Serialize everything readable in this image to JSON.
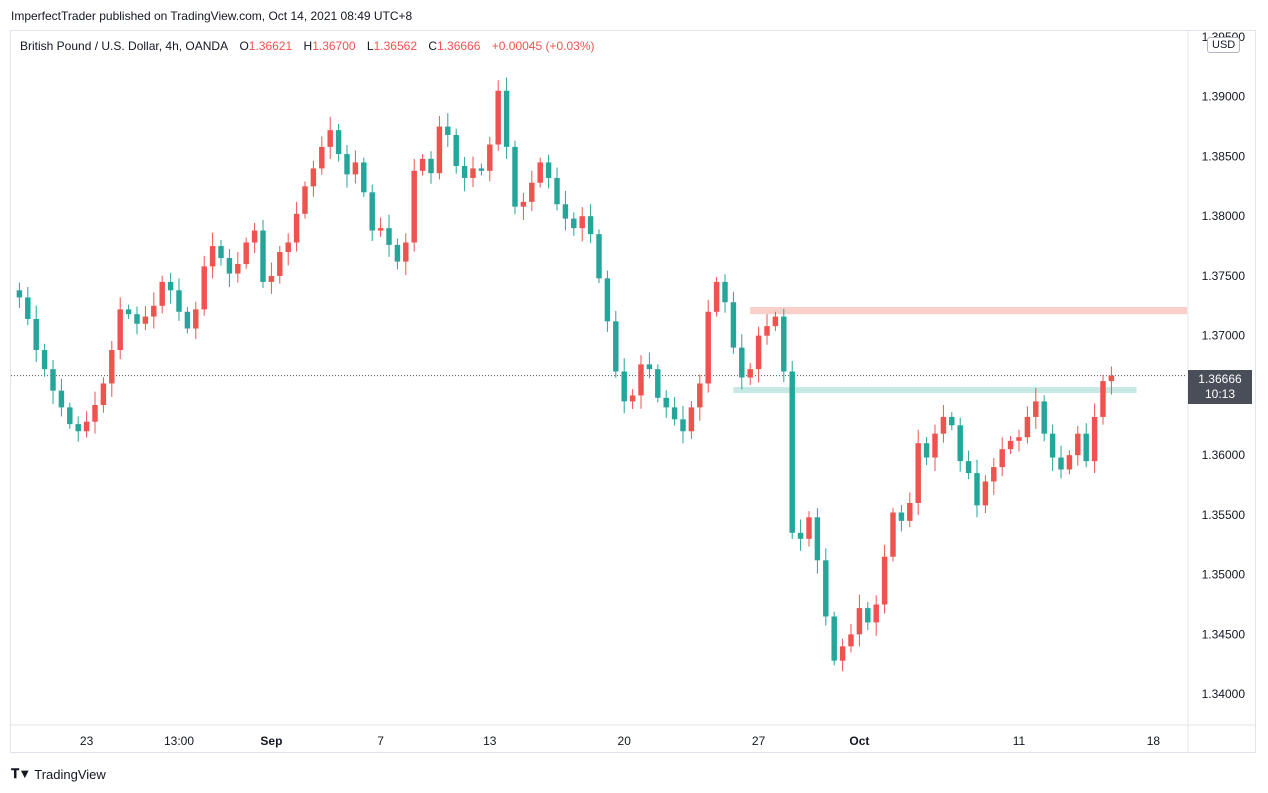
{
  "header": {
    "published": "ImperfectTrader published on TradingView.com, Oct 14, 2021 08:49 UTC+8"
  },
  "legend": {
    "symbol": "British Pound / U.S. Dollar, 4h, OANDA",
    "open_label": "O",
    "open": "1.36621",
    "high_label": "H",
    "high": "1.36700",
    "low_label": "L",
    "low": "1.36562",
    "close_label": "C",
    "close": "1.36666",
    "change": "+0.00045 (+0.03%)"
  },
  "currency_badge": "USD",
  "last_price": {
    "price": "1.36666",
    "countdown": "10:13"
  },
  "footer": {
    "brand": "TradingView",
    "brand_icon": "tradingview-logo-icon"
  },
  "colors": {
    "up": "#ef5350",
    "down": "#26a69a",
    "resistance_zone": "#f8cfc9",
    "support_zone": "#c8e8e5"
  },
  "chart_data": {
    "type": "candlestick",
    "instrument": "British Pound / U.S. Dollar",
    "timeframe": "4h",
    "ylim": [
      1.3375,
      1.3955
    ],
    "xlim": [
      0,
      140
    ],
    "y_ticks": [
      "1.39500",
      "1.39000",
      "1.38500",
      "1.38000",
      "1.37500",
      "1.37000",
      "1.36500",
      "1.36000",
      "1.35500",
      "1.35000",
      "1.34500",
      "1.34000"
    ],
    "x_ticks": [
      {
        "label": "23",
        "x": 9,
        "bold": false
      },
      {
        "label": "13:00",
        "x": 20,
        "bold": false
      },
      {
        "label": "Sep",
        "x": 31,
        "bold": true
      },
      {
        "label": "7",
        "x": 44,
        "bold": false
      },
      {
        "label": "13",
        "x": 57,
        "bold": false
      },
      {
        "label": "20",
        "x": 73,
        "bold": false
      },
      {
        "label": "27",
        "x": 89,
        "bold": false
      },
      {
        "label": "Oct",
        "x": 101,
        "bold": true
      },
      {
        "label": "11",
        "x": 120,
        "bold": false
      },
      {
        "label": "18",
        "x": 136,
        "bold": false
      }
    ],
    "close_path": [
      [
        0,
        1.3738
      ],
      [
        1,
        1.3732
      ],
      [
        2,
        1.3714
      ],
      [
        3,
        1.3688
      ],
      [
        4,
        1.3672
      ],
      [
        5,
        1.3654
      ],
      [
        6,
        1.364
      ],
      [
        7,
        1.3626
      ],
      [
        8,
        1.362
      ],
      [
        9,
        1.3628
      ],
      [
        10,
        1.3642
      ],
      [
        11,
        1.366
      ],
      [
        12,
        1.3688
      ],
      [
        13,
        1.3722
      ],
      [
        14,
        1.3718
      ],
      [
        15,
        1.371
      ],
      [
        16,
        1.3716
      ],
      [
        17,
        1.3725
      ],
      [
        18,
        1.3745
      ],
      [
        19,
        1.3738
      ],
      [
        20,
        1.372
      ],
      [
        21,
        1.3706
      ],
      [
        22,
        1.3722
      ],
      [
        23,
        1.3758
      ],
      [
        24,
        1.3775
      ],
      [
        25,
        1.3765
      ],
      [
        26,
        1.3752
      ],
      [
        27,
        1.376
      ],
      [
        28,
        1.3778
      ],
      [
        29,
        1.3788
      ],
      [
        30,
        1.3745
      ],
      [
        31,
        1.375
      ],
      [
        32,
        1.377
      ],
      [
        33,
        1.3778
      ],
      [
        34,
        1.3802
      ],
      [
        35,
        1.3825
      ],
      [
        36,
        1.384
      ],
      [
        37,
        1.3858
      ],
      [
        38,
        1.3872
      ],
      [
        39,
        1.3852
      ],
      [
        40,
        1.3835
      ],
      [
        41,
        1.3845
      ],
      [
        42,
        1.382
      ],
      [
        43,
        1.3788
      ],
      [
        44,
        1.379
      ],
      [
        45,
        1.3776
      ],
      [
        46,
        1.3762
      ],
      [
        47,
        1.3778
      ],
      [
        48,
        1.3838
      ],
      [
        49,
        1.3848
      ],
      [
        50,
        1.3836
      ],
      [
        51,
        1.3875
      ],
      [
        52,
        1.3868
      ],
      [
        53,
        1.3842
      ],
      [
        54,
        1.3832
      ],
      [
        55,
        1.384
      ],
      [
        56,
        1.3838
      ],
      [
        57,
        1.386
      ],
      [
        58,
        1.3905
      ],
      [
        59,
        1.3858
      ],
      [
        60,
        1.3808
      ],
      [
        61,
        1.3812
      ],
      [
        62,
        1.3828
      ],
      [
        63,
        1.3845
      ],
      [
        64,
        1.3832
      ],
      [
        65,
        1.381
      ],
      [
        66,
        1.3798
      ],
      [
        67,
        1.379
      ],
      [
        68,
        1.38
      ],
      [
        69,
        1.3785
      ],
      [
        70,
        1.3748
      ],
      [
        71,
        1.3712
      ],
      [
        72,
        1.367
      ],
      [
        73,
        1.3645
      ],
      [
        74,
        1.365
      ],
      [
        75,
        1.3676
      ],
      [
        76,
        1.3672
      ],
      [
        77,
        1.3648
      ],
      [
        78,
        1.364
      ],
      [
        79,
        1.363
      ],
      [
        80,
        1.362
      ],
      [
        81,
        1.364
      ],
      [
        82,
        1.366
      ],
      [
        83,
        1.372
      ],
      [
        84,
        1.3745
      ],
      [
        85,
        1.3728
      ],
      [
        86,
        1.369
      ],
      [
        87,
        1.3665
      ],
      [
        88,
        1.3672
      ],
      [
        89,
        1.37
      ],
      [
        90,
        1.3708
      ],
      [
        91,
        1.3716
      ],
      [
        92,
        1.367
      ],
      [
        93,
        1.3535
      ],
      [
        94,
        1.353
      ],
      [
        95,
        1.3548
      ],
      [
        96,
        1.3512
      ],
      [
        97,
        1.3465
      ],
      [
        98,
        1.3428
      ],
      [
        99,
        1.344
      ],
      [
        100,
        1.345
      ],
      [
        101,
        1.3472
      ],
      [
        102,
        1.346
      ],
      [
        103,
        1.3475
      ],
      [
        104,
        1.3515
      ],
      [
        105,
        1.3552
      ],
      [
        106,
        1.3545
      ],
      [
        107,
        1.356
      ],
      [
        108,
        1.361
      ],
      [
        109,
        1.3598
      ],
      [
        110,
        1.3618
      ],
      [
        111,
        1.3632
      ],
      [
        112,
        1.3625
      ],
      [
        113,
        1.3595
      ],
      [
        114,
        1.3585
      ],
      [
        115,
        1.3558
      ],
      [
        116,
        1.3578
      ],
      [
        117,
        1.359
      ],
      [
        118,
        1.3605
      ],
      [
        119,
        1.3612
      ],
      [
        120,
        1.3615
      ],
      [
        121,
        1.3632
      ],
      [
        122,
        1.3645
      ],
      [
        123,
        1.3618
      ],
      [
        124,
        1.3598
      ],
      [
        125,
        1.3588
      ],
      [
        126,
        1.36
      ],
      [
        127,
        1.3618
      ],
      [
        128,
        1.3595
      ],
      [
        129,
        1.3632
      ],
      [
        130,
        1.3662
      ],
      [
        131,
        1.36666
      ]
    ],
    "zones": [
      {
        "name": "resistance-zone",
        "x_start": 88,
        "x_end": 140,
        "y_top": 1.3724,
        "y_bottom": 1.3718,
        "color": "#f8cfc9"
      },
      {
        "name": "support-zone",
        "x_start": 86,
        "x_end": 134,
        "y_top": 1.3657,
        "y_bottom": 1.3654,
        "color": "#c8e8e5"
      }
    ],
    "current_price_line": 1.36666
  }
}
